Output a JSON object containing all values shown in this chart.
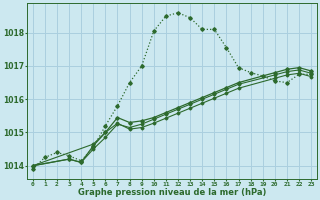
{
  "bg_color": "#cce8f0",
  "grid_color": "#aacfdf",
  "line_color": "#2d6a2d",
  "xlabel": "Graphe pression niveau de la mer (hPa)",
  "xlim": [
    -0.5,
    23.5
  ],
  "ylim": [
    1013.6,
    1018.9
  ],
  "yticks": [
    1014,
    1015,
    1016,
    1017,
    1018
  ],
  "xticks": [
    0,
    1,
    2,
    3,
    4,
    5,
    6,
    7,
    8,
    9,
    10,
    11,
    12,
    13,
    14,
    15,
    16,
    17,
    18,
    19,
    20,
    21,
    22,
    23
  ],
  "series1_x": [
    0,
    1,
    2,
    3,
    4,
    5,
    6,
    7,
    8,
    9,
    10,
    11,
    12,
    13,
    14,
    15,
    16,
    17,
    18,
    19,
    20,
    21,
    22,
    23
  ],
  "series1_y": [
    1013.9,
    1014.25,
    1014.4,
    1014.3,
    1014.15,
    1014.55,
    1015.2,
    1015.8,
    1016.5,
    1017.0,
    1018.05,
    1018.5,
    1018.6,
    1018.45,
    1018.1,
    1018.1,
    1017.55,
    1016.95,
    1016.8,
    1016.7,
    1016.55,
    1016.5,
    1016.75,
    1016.75
  ],
  "series2_x": [
    0,
    3,
    4,
    5,
    6,
    7,
    8,
    9,
    10,
    11,
    12,
    13,
    14,
    15,
    16,
    17,
    20,
    21,
    22,
    23
  ],
  "series2_y": [
    1014.0,
    1014.2,
    1014.1,
    1014.6,
    1015.0,
    1015.45,
    1015.3,
    1015.35,
    1015.45,
    1015.6,
    1015.75,
    1015.9,
    1016.05,
    1016.2,
    1016.35,
    1016.5,
    1016.8,
    1016.9,
    1016.95,
    1016.85
  ],
  "series3_x": [
    0,
    3,
    4,
    5,
    6,
    7,
    8,
    9,
    10,
    11,
    12,
    13,
    14,
    15,
    16,
    17,
    20,
    21,
    22,
    23
  ],
  "series3_y": [
    1014.0,
    1014.2,
    1014.1,
    1014.5,
    1014.85,
    1015.25,
    1015.15,
    1015.25,
    1015.4,
    1015.55,
    1015.7,
    1015.85,
    1016.0,
    1016.15,
    1016.3,
    1016.45,
    1016.73,
    1016.83,
    1016.88,
    1016.78
  ],
  "series4_x": [
    0,
    5,
    6,
    7,
    8,
    9,
    10,
    11,
    12,
    13,
    14,
    15,
    16,
    17,
    20,
    21,
    22,
    23
  ],
  "series4_y": [
    1014.0,
    1014.65,
    1015.0,
    1015.28,
    1015.1,
    1015.15,
    1015.28,
    1015.43,
    1015.58,
    1015.73,
    1015.88,
    1016.03,
    1016.18,
    1016.33,
    1016.63,
    1016.73,
    1016.78,
    1016.68
  ]
}
